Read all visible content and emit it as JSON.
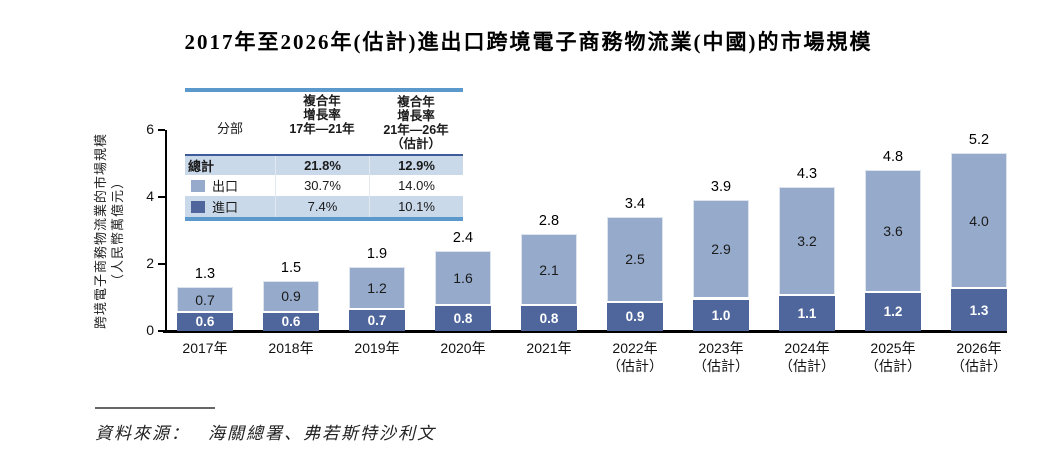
{
  "title": "2017年至2026年(估計)進出口跨境電子商務物流業(中國)的市場規模",
  "colors": {
    "export": "#96ABCB",
    "import": "#4E669B",
    "table_accent": "#5B98CB",
    "table_row_bg": "#C9D9EA",
    "table_total_border": "#3E5C99"
  },
  "legend_table": {
    "col_headers": {
      "segment": "分部",
      "cagr_17_21": "複合年\n增長率\n17年—21年",
      "cagr_21_26": "複合年\n增長率\n21年—26年\n（估計）"
    },
    "rows": [
      {
        "label": "總計",
        "swatch": null,
        "cagr_17_21": "21.8%",
        "cagr_21_26": "12.9%",
        "bold": true,
        "shaded": true
      },
      {
        "label": "出口",
        "swatch": "export",
        "cagr_17_21": "30.7%",
        "cagr_21_26": "14.0%",
        "bold": false,
        "shaded": false
      },
      {
        "label": "進口",
        "swatch": "import",
        "cagr_17_21": "7.4%",
        "cagr_21_26": "10.1%",
        "bold": false,
        "shaded": true
      }
    ]
  },
  "chart_data": {
    "type": "bar",
    "stacked": true,
    "categories": [
      "2017年",
      "2018年",
      "2019年",
      "2020年",
      "2021年",
      "2022年",
      "2023年",
      "2024年",
      "2025年",
      "2026年"
    ],
    "category_notes": [
      "",
      "",
      "",
      "",
      "",
      "（估計）",
      "（估計）",
      "（估計）",
      "（估計）",
      "（估計）"
    ],
    "series": [
      {
        "name": "進口",
        "color_key": "import",
        "values": [
          0.6,
          0.6,
          0.7,
          0.8,
          0.8,
          0.9,
          1.0,
          1.1,
          1.2,
          1.3
        ]
      },
      {
        "name": "出口",
        "color_key": "export",
        "values": [
          0.7,
          0.9,
          1.2,
          1.6,
          2.1,
          2.5,
          2.9,
          3.2,
          3.6,
          4.0
        ]
      }
    ],
    "totals": [
      1.3,
      1.5,
      1.9,
      2.4,
      2.8,
      3.4,
      3.9,
      4.3,
      4.8,
      5.2
    ],
    "ylabel_line1": "跨境電子商務物流業的市場規模",
    "ylabel_line2": "（人民幣萬億元）",
    "yticks": [
      0,
      2,
      4,
      6
    ],
    "ylim": [
      0,
      6
    ],
    "legend_position": "upper-left",
    "grid": false
  },
  "footer": {
    "source_label": "資料來源：",
    "source_text": "海關總署、弗若斯特沙利文"
  }
}
